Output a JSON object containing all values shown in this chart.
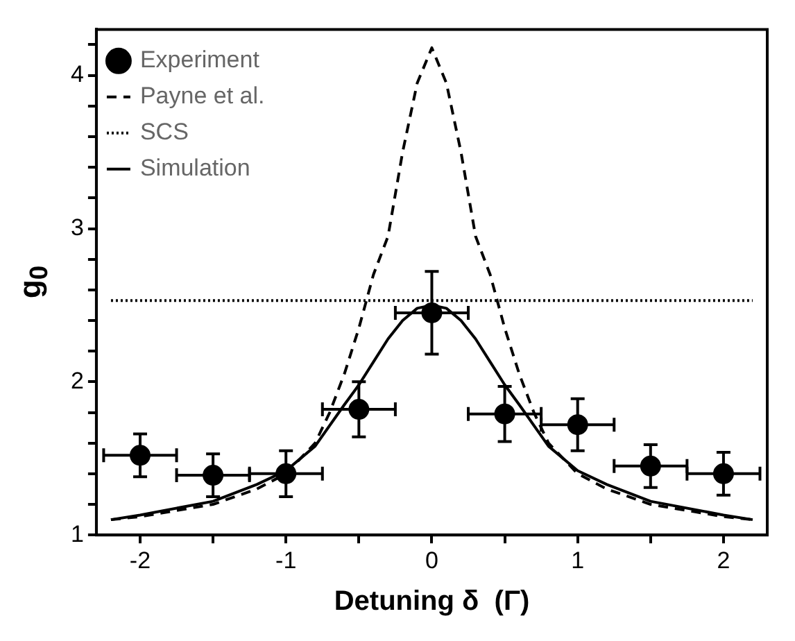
{
  "chart_data": {
    "type": "line",
    "xlabel": "Detuning δ  (Γ)",
    "ylabel": "g$_{0}$",
    "xlim": [
      -2.3,
      2.3
    ],
    "ylim": [
      1,
      4.3
    ],
    "xticks": [
      -2,
      {
        "value": -1.5,
        "label": null
      },
      -1,
      {
        "value": -0.5,
        "label": null
      },
      0,
      {
        "value": 0.5,
        "label": null
      },
      1,
      {
        "value": 1.5,
        "label": null
      },
      2
    ],
    "yticks": [
      1,
      {
        "value": 1.2,
        "label": null
      },
      {
        "value": 1.4,
        "label": null
      },
      {
        "value": 1.6,
        "label": null
      },
      {
        "value": 1.8,
        "label": null
      },
      2,
      {
        "value": 2.2,
        "label": null
      },
      {
        "value": 2.4,
        "label": null
      },
      {
        "value": 2.6,
        "label": null
      },
      {
        "value": 2.8,
        "label": null
      },
      3,
      {
        "value": 3.2,
        "label": null
      },
      {
        "value": 3.4,
        "label": null
      },
      {
        "value": 3.6,
        "label": null
      },
      {
        "value": 3.8,
        "label": null
      },
      4,
      {
        "value": 4.2,
        "label": null
      }
    ],
    "grid": false,
    "legend": "top left",
    "series": [
      {
        "name": "Experiment",
        "type": "scatter",
        "marker": "circle",
        "color": "#000000",
        "x": [
          -2,
          -1.5,
          -1,
          -0.5,
          0,
          0.5,
          1,
          1.5,
          2
        ],
        "values": [
          1.52,
          1.39,
          1.4,
          1.82,
          2.45,
          1.79,
          1.72,
          1.45,
          1.4
        ],
        "errors": [
          0.14,
          0.14,
          0.15,
          0.18,
          0.27,
          0.18,
          0.17,
          0.14,
          0.14
        ],
        "xerrors": [
          0.25,
          0.25,
          0.25,
          0.25,
          0.25,
          0.25,
          0.25,
          0.25,
          0.25
        ]
      },
      {
        "name": "Payne et al.",
        "type": "line",
        "line_style": "dashed",
        "color": "#000000",
        "x": [
          -2.2,
          -2,
          -1.5,
          -1.2,
          -1,
          -0.8,
          -0.7,
          -0.6,
          -0.5,
          -0.4,
          -0.3,
          -0.2,
          -0.1,
          0,
          0.1,
          0.2,
          0.3,
          0.4,
          0.5,
          0.6,
          0.7,
          0.8,
          1,
          1.2,
          1.5,
          2,
          2.2
        ],
        "values": [
          1.1,
          1.12,
          1.2,
          1.3,
          1.4,
          1.6,
          1.8,
          2.05,
          2.35,
          2.7,
          2.95,
          3.5,
          3.95,
          4.18,
          3.95,
          3.5,
          2.95,
          2.7,
          2.35,
          2.05,
          1.8,
          1.6,
          1.4,
          1.3,
          1.2,
          1.12,
          1.1
        ]
      },
      {
        "name": "SCS",
        "type": "line",
        "line_style": "dotted",
        "color": "#000000",
        "x": [
          -2.2,
          2.2
        ],
        "values": [
          2.53,
          2.53
        ]
      },
      {
        "name": "Simulation",
        "type": "line",
        "line_style": "solid",
        "color": "#000000",
        "x": [
          -2.2,
          -2,
          -1.5,
          -1.2,
          -1,
          -0.8,
          -0.6,
          -0.5,
          -0.4,
          -0.3,
          -0.2,
          -0.1,
          0,
          0.1,
          0.2,
          0.3,
          0.4,
          0.5,
          0.6,
          0.8,
          1,
          1.2,
          1.5,
          2,
          2.2
        ],
        "values": [
          1.1,
          1.13,
          1.22,
          1.33,
          1.42,
          1.58,
          1.85,
          1.98,
          2.13,
          2.28,
          2.4,
          2.48,
          2.5,
          2.48,
          2.4,
          2.28,
          2.13,
          1.98,
          1.85,
          1.58,
          1.42,
          1.33,
          1.22,
          1.13,
          1.1
        ]
      }
    ]
  }
}
